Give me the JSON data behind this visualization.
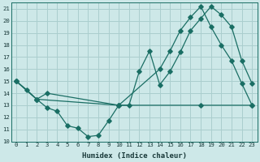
{
  "xlabel": "Humidex (Indice chaleur)",
  "bg_color": "#cde8e8",
  "grid_color": "#aacece",
  "line_color": "#1a6e64",
  "xlim": [
    -0.5,
    23.5
  ],
  "ylim": [
    10,
    21.5
  ],
  "xticks": [
    0,
    1,
    2,
    3,
    4,
    5,
    6,
    7,
    8,
    9,
    10,
    11,
    12,
    13,
    14,
    15,
    16,
    17,
    18,
    19,
    20,
    21,
    22,
    23
  ],
  "yticks": [
    10,
    11,
    12,
    13,
    14,
    15,
    16,
    17,
    18,
    19,
    20,
    21
  ],
  "line1_x": [
    0,
    1,
    2,
    3,
    4,
    5,
    6,
    7,
    8,
    9,
    10,
    11,
    12,
    13,
    14,
    15,
    16,
    17,
    18,
    19,
    20,
    21,
    22,
    23
  ],
  "line1_y": [
    15,
    14.3,
    13.5,
    12.8,
    12.5,
    11.3,
    11.1,
    10.4,
    10.5,
    11.7,
    13.0,
    13.0,
    15.8,
    17.5,
    14.7,
    15.8,
    17.4,
    19.2,
    20.2,
    21.2,
    20.5,
    19.5,
    16.7,
    14.8
  ],
  "line2_x": [
    0,
    2,
    3,
    10,
    14,
    15,
    16,
    17,
    18,
    19,
    20,
    21,
    22,
    23
  ],
  "line2_y": [
    15,
    13.5,
    14.0,
    13.0,
    16.0,
    17.5,
    19.2,
    20.3,
    21.2,
    19.5,
    18.0,
    16.7,
    14.8,
    13.0
  ],
  "line3_x": [
    0,
    2,
    10,
    18,
    23
  ],
  "line3_y": [
    15,
    13.5,
    13.0,
    13.0,
    13.0
  ],
  "marker": "D",
  "markersize": 2.8,
  "linewidth": 0.9
}
